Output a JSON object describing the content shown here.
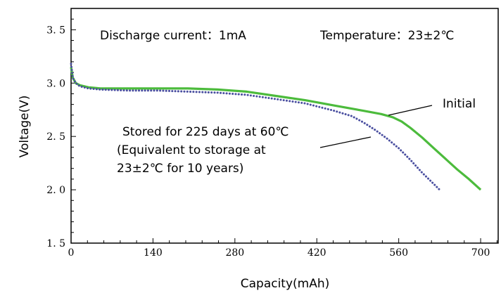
{
  "chart_data": {
    "type": "line",
    "xlabel": "Capacity(mAh)",
    "ylabel": "Voltage(V)",
    "xlim": [
      0,
      730
    ],
    "ylim": [
      1.5,
      3.7
    ],
    "x_ticks": [
      0,
      140,
      280,
      420,
      560,
      700
    ],
    "x_tick_labels": [
      "0",
      "140",
      "280",
      "420",
      "560",
      "700"
    ],
    "y_ticks": [
      1.5,
      2.0,
      2.5,
      3.0,
      3.5
    ],
    "y_tick_labels": [
      "1. 5",
      "2. 0",
      "2. 5",
      "3. 0",
      "3. 5"
    ],
    "y_minor_step": 0.1,
    "x_minor_step": 28,
    "grid": false,
    "annotations": {
      "discharge": "Discharge current：1mA",
      "temperature": "Temperature：23±2℃",
      "initial": "Initial",
      "stored_line1": "Stored for 225 days at 60℃",
      "stored_line2": "(Equivalent to storage at",
      "stored_line3": "23±2℃ for 10 years)"
    },
    "series": [
      {
        "name": "Initial",
        "style": "solid",
        "color": "#4cbb3c",
        "x": [
          0,
          3,
          8,
          15,
          30,
          50,
          100,
          150,
          200,
          250,
          300,
          350,
          400,
          450,
          500,
          530,
          550,
          565,
          580,
          600,
          620,
          640,
          660,
          680,
          700
        ],
        "y": [
          3.15,
          3.05,
          3.0,
          2.98,
          2.96,
          2.95,
          2.95,
          2.95,
          2.95,
          2.94,
          2.92,
          2.88,
          2.84,
          2.79,
          2.74,
          2.71,
          2.68,
          2.64,
          2.58,
          2.49,
          2.39,
          2.29,
          2.19,
          2.1,
          2.0
        ]
      },
      {
        "name": "Stored for 225 days at 60℃",
        "style": "dotted",
        "color": "#4a4fa0",
        "x": [
          0,
          3,
          8,
          15,
          30,
          50,
          100,
          150,
          200,
          250,
          300,
          350,
          400,
          450,
          480,
          500,
          520,
          540,
          560,
          580,
          600,
          615,
          630
        ],
        "y": [
          3.18,
          3.05,
          3.0,
          2.97,
          2.95,
          2.94,
          2.93,
          2.93,
          2.92,
          2.91,
          2.89,
          2.85,
          2.81,
          2.74,
          2.69,
          2.63,
          2.56,
          2.48,
          2.39,
          2.28,
          2.16,
          2.08,
          2.0
        ]
      }
    ]
  }
}
